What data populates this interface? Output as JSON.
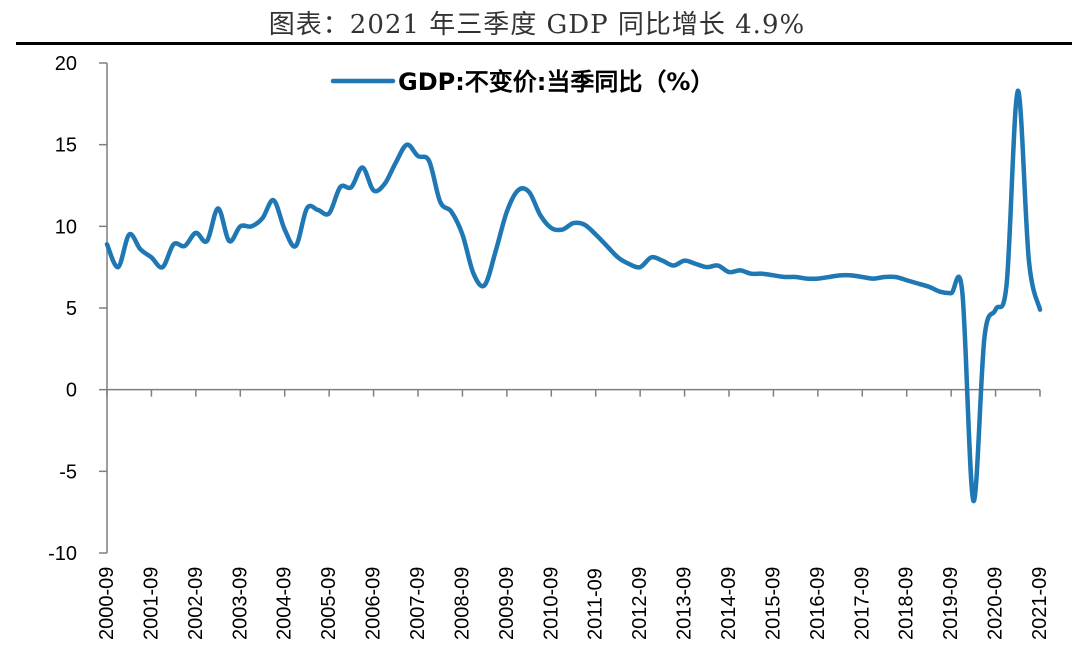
{
  "title": "图表：2021 年三季度 GDP 同比增长 4.9%",
  "colors": {
    "series": "#1f77b4",
    "axis": "#7f7f7f",
    "rule": "#000000"
  },
  "chart_data": {
    "type": "line",
    "title": "图表：2021 年三季度 GDP 同比增长 4.9%",
    "xlabel": "",
    "ylabel": "",
    "ylim": [
      -10,
      20
    ],
    "yticks": [
      -10,
      -5,
      0,
      5,
      10,
      15,
      20
    ],
    "grid": false,
    "legend_position": "top-center",
    "x_start": "2000-09",
    "x_end": "2021-09",
    "xtick_labels": [
      "2000-09",
      "2001-09",
      "2002-09",
      "2003-09",
      "2004-09",
      "2005-09",
      "2006-09",
      "2007-09",
      "2008-09",
      "2009-09",
      "2010-09",
      "2011-09",
      "2012-09",
      "2013-09",
      "2014-09",
      "2015-09",
      "2016-09",
      "2017-09",
      "2018-09",
      "2019-09",
      "2020-09",
      "2021-09"
    ],
    "series": [
      {
        "name": "GDP:不变价:当季同比（%）",
        "quarterly_from": "2000-09",
        "values": [
          8.9,
          7.5,
          9.5,
          8.6,
          8.1,
          7.5,
          8.9,
          8.8,
          9.6,
          9.1,
          11.1,
          9.1,
          10.0,
          10.0,
          10.5,
          11.6,
          9.8,
          8.8,
          11.1,
          11.0,
          10.8,
          12.4,
          12.4,
          13.6,
          12.2,
          12.6,
          13.9,
          15.0,
          14.3,
          14.0,
          11.5,
          10.9,
          9.5,
          7.1,
          6.4,
          8.5,
          10.9,
          12.2,
          12.1,
          10.7,
          9.9,
          9.8,
          10.2,
          10.1,
          9.5,
          8.8,
          8.1,
          7.7,
          7.5,
          8.1,
          7.9,
          7.6,
          7.9,
          7.7,
          7.5,
          7.6,
          7.2,
          7.3,
          7.1,
          7.1,
          7.0,
          6.9,
          6.9,
          6.8,
          6.8,
          6.9,
          7.0,
          7.0,
          6.9,
          6.8,
          6.9,
          6.9,
          6.7,
          6.5,
          6.3,
          6.0,
          5.9,
          6.0,
          -6.8,
          3.2,
          4.9,
          6.5,
          18.3,
          7.9,
          4.9
        ]
      }
    ]
  }
}
